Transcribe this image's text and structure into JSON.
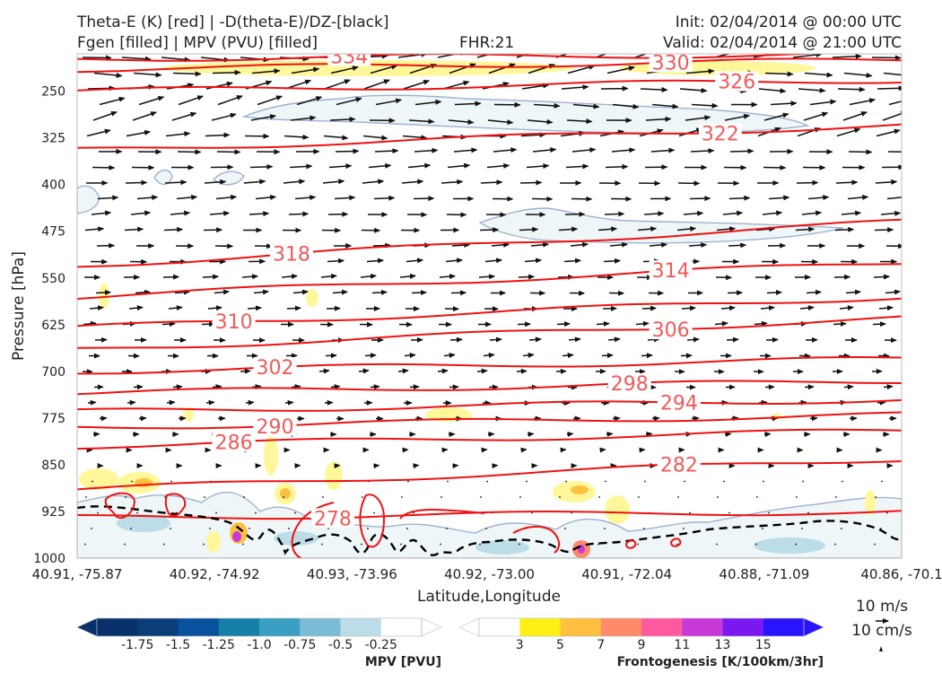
{
  "header": {
    "line1_left": "Theta-E (K) [red] | -D(theta-E)/DZ-[black]",
    "line2_left": "Fgen [filled] | MPV (PVU) [filled]",
    "fhr": "FHR:21",
    "init": "Init: 02/04/2014 @ 00:00 UTC",
    "valid": "Valid: 02/04/2014 @ 21:00 UTC"
  },
  "chart_data": {
    "type": "cross-section",
    "xlabel": "Latitude,Longitude",
    "ylabel": "Pressure [hPa]",
    "ylim": [
      1000,
      190
    ],
    "x_ticks": [
      "40.91, -75.87",
      "40.92, -74.92",
      "40.93, -73.96",
      "40.92, -73.00",
      "40.91, -72.04",
      "40.88, -71.09",
      "40.86, -70.1"
    ],
    "y_ticks": [
      250,
      325,
      400,
      475,
      550,
      625,
      700,
      775,
      850,
      925,
      1000
    ],
    "theta_e_contours": [
      {
        "label": "334",
        "left_p": 198,
        "right_p": 190
      },
      {
        "label": "330",
        "left_p": 215,
        "right_p": 200
      },
      {
        "label": "326",
        "left_p": 250,
        "right_p": 232
      },
      {
        "label": "322",
        "left_p": 345,
        "right_p": 305
      },
      {
        "label": "318",
        "left_p": 530,
        "right_p": 460
      },
      {
        "label": "314",
        "left_p": 580,
        "right_p": 525
      },
      {
        "label": "310",
        "left_p": 630,
        "right_p": 580
      },
      {
        "label": "306",
        "left_p": 665,
        "right_p": 615
      },
      {
        "label": "302",
        "left_p": 700,
        "right_p": 680
      },
      {
        "label": "298",
        "left_p": 735,
        "right_p": 715
      },
      {
        "label": "294",
        "left_p": 765,
        "right_p": 745
      },
      {
        "label": "290",
        "left_p": 790,
        "right_p": 770
      },
      {
        "label": "286",
        "left_p": 820,
        "right_p": 795
      },
      {
        "label": "282",
        "left_p": 890,
        "right_p": 840
      },
      {
        "label": "278",
        "left_p": 935,
        "right_p": 925
      }
    ],
    "mpv_colorbar": {
      "label": "MPV [PVU]",
      "ticks": [
        "-1.75",
        "-1.5",
        "-1.25",
        "-1.0",
        "-0.75",
        "-0.5",
        "-0.25"
      ],
      "colors": [
        "#08306b",
        "#0b3d78",
        "#08519c",
        "#1580a8",
        "#3a9fc3",
        "#7abcd6",
        "#bcdde8",
        "#ffffff"
      ]
    },
    "fgen_colorbar": {
      "label": "Frontogenesis [K/100km/3hr]",
      "ticks": [
        "3",
        "5",
        "7",
        "9",
        "11",
        "13",
        "15"
      ],
      "colors": [
        "#ffffff",
        "#fff014",
        "#ffc040",
        "#ff8a6a",
        "#ff5aa0",
        "#c83ad8",
        "#7a18f2",
        "#2a14ff"
      ]
    },
    "wind_reference": [
      "10 m/s",
      "10 cm/s"
    ]
  }
}
